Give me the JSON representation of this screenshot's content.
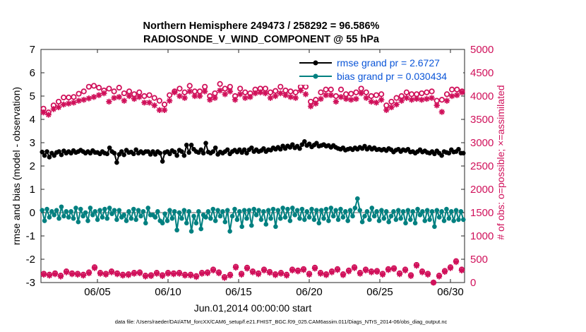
{
  "chart_data": {
    "type": "line",
    "title_line1": "Northern Hemisphere 249473 / 258292 = 96.586%",
    "title_line2": "RADIOSONDE_V_WIND_COMPONENT @ 55 hPa",
    "xlabel": "Jun.01,2014 00:00:00 start",
    "ylabel_left": "rmse and bias (model - observation)",
    "ylabel_right": "# of obs: o=possible; ×=assimilated",
    "footnote": "data file: /Users/raeder/DAI/ATM_forcXX/CAM6_setup/f.e21.FHIST_BGC.f09_025.CAM6assim.011/Diags_NTrS_2014-06/obs_diag_output.nc",
    "xlim": [
      1,
      31
    ],
    "ylim_left": [
      -3,
      7
    ],
    "ylim_right": [
      0,
      5000
    ],
    "x_ticks": [
      5,
      10,
      15,
      20,
      25,
      30
    ],
    "x_tick_labels": [
      "06/05",
      "06/10",
      "06/15",
      "06/20",
      "06/25",
      "06/30"
    ],
    "y_left_ticks": [
      "-3",
      "-2",
      "-1",
      "0",
      "1",
      "2",
      "3",
      "4",
      "5",
      "6",
      "7"
    ],
    "y_right_ticks": [
      "0",
      "500",
      "1000",
      "1500",
      "2000",
      "2500",
      "3000",
      "3500",
      "4000",
      "4500",
      "5000"
    ],
    "colors": {
      "rmse": "#000000",
      "bias": "#008080",
      "obs": "#d0105a",
      "zero_line": "#b0b0b0",
      "legend_text": "#0a55d8"
    },
    "series": [
      {
        "name": "rmse grand pr = 2.6727",
        "axis": "left",
        "marker": "dot",
        "values": [
          2.6,
          2.45,
          2.62,
          2.38,
          2.55,
          2.45,
          2.58,
          2.62,
          2.48,
          2.65,
          2.55,
          2.62,
          2.55,
          2.66,
          2.58,
          2.62,
          2.68,
          2.62,
          2.55,
          2.62,
          2.55,
          2.66,
          2.58,
          2.58,
          2.52,
          2.62,
          2.55,
          2.52,
          2.78,
          2.62,
          2.55,
          2.15,
          2.5,
          2.62,
          2.48,
          2.68,
          2.58,
          2.6,
          2.52,
          2.7,
          2.55,
          2.62,
          2.55,
          2.62,
          2.62,
          2.5,
          2.62,
          2.5,
          2.62,
          2.55,
          2.2,
          2.58,
          2.62,
          2.52,
          2.66,
          2.6,
          2.45,
          2.68,
          2.62,
          2.45,
          2.9,
          2.58,
          2.9,
          2.72,
          2.62,
          2.58,
          2.7,
          2.55,
          2.98,
          2.6,
          2.55,
          2.62,
          2.78,
          2.5,
          2.6,
          2.55,
          2.62,
          2.7,
          2.52,
          2.62,
          2.68,
          2.6,
          2.7,
          2.58,
          2.7,
          2.55,
          2.7,
          2.78,
          2.62,
          2.7,
          2.62,
          2.66,
          2.75,
          2.62,
          2.7,
          2.68,
          2.78,
          2.72,
          2.8,
          2.72,
          2.86,
          2.75,
          2.86,
          2.8,
          2.92,
          2.78,
          2.85,
          2.75,
          2.92,
          3.05,
          2.88,
          2.95,
          2.82,
          2.9,
          2.98,
          2.85,
          2.88,
          2.92,
          2.85,
          2.88,
          2.8,
          2.88,
          2.8,
          2.75,
          2.72,
          2.78,
          2.68,
          2.72,
          2.75,
          2.7,
          2.78,
          2.72,
          2.8,
          2.75,
          2.85,
          2.72,
          2.8,
          2.72,
          2.78,
          2.7,
          2.72,
          2.68,
          2.72,
          2.66,
          2.75,
          2.7,
          2.6,
          2.68,
          2.72,
          2.62,
          2.7,
          2.66,
          2.72,
          2.6,
          2.62,
          2.55,
          2.62,
          2.7,
          2.6,
          2.65,
          2.58,
          2.55,
          2.62,
          2.52,
          2.65,
          2.55,
          2.45,
          2.62,
          2.58,
          2.55,
          2.7,
          2.6,
          2.62,
          2.72,
          2.55,
          2.55
        ]
      },
      {
        "name": "bias grand pr = 0.030434",
        "axis": "left",
        "marker": "dot",
        "values": [
          0.1,
          -0.35,
          0.15,
          -0.2,
          0.05,
          -0.1,
          0.1,
          -0.25,
          0.25,
          -0.15,
          0.05,
          -0.2,
          0.05,
          -0.25,
          0.2,
          -0.4,
          0.15,
          -0.15,
          0.0,
          -0.35,
          0.2,
          -0.1,
          0.05,
          -0.3,
          0.1,
          -0.2,
          0.15,
          -0.25,
          0.2,
          -0.05,
          0.1,
          -0.3,
          0.1,
          -0.2,
          -0.1,
          -0.35,
          0.05,
          -0.25,
          0.15,
          -0.3,
          0.1,
          -0.15,
          0.05,
          -0.45,
          0.2,
          -0.1,
          -0.1,
          -0.2,
          0.05,
          -0.35,
          -0.45,
          -0.05,
          -0.35,
          0.1,
          -0.25,
          0.05,
          -0.75,
          0.0,
          -0.25,
          0.1,
          -0.45,
          0.05,
          -0.8,
          -0.15,
          -0.45,
          0.05,
          -0.7,
          -0.1,
          -0.2,
          0.05,
          -0.25,
          0.15,
          -0.35,
          0.1,
          -0.15,
          0.05,
          -0.4,
          0.1,
          -0.8,
          -0.15,
          0.15,
          -0.3,
          0.05,
          -0.6,
          0.1,
          -0.25,
          0.1,
          -0.55,
          0.15,
          -0.1,
          0.1,
          -0.3,
          0.05,
          -0.5,
          0.1,
          -0.25,
          0.15,
          -0.6,
          0.1,
          -0.25,
          0.2,
          -0.2,
          0.15,
          -0.35,
          0.2,
          -0.1,
          0.1,
          -0.25,
          0.15,
          -0.3,
          0.05,
          -0.2,
          0.15,
          -0.3,
          0.1,
          -0.45,
          0.1,
          -0.25,
          0.15,
          -0.35,
          0.2,
          -0.15,
          0.1,
          -0.3,
          0.15,
          -0.2,
          0.05,
          -0.35,
          0.1,
          -0.15,
          0.2,
          0.6,
          0.1,
          -0.4,
          -0.15,
          0.05,
          -0.3,
          0.2,
          -0.15,
          0.05,
          -0.35,
          0.1,
          -0.25,
          0.05,
          -0.4,
          -0.15,
          0.05,
          -0.3,
          0.1,
          -0.25,
          0.05,
          -0.45,
          0.1,
          -0.3,
          0.05,
          -0.45,
          0.15,
          -0.1,
          0.05,
          -0.35,
          0.1,
          -0.3,
          0.05,
          -0.6,
          0.1,
          -0.2,
          0.05,
          -0.35,
          0.15,
          -0.25,
          0.05,
          -0.35,
          0.1,
          -0.3,
          0.05,
          -0.3
        ]
      },
      {
        "name": "possible obs",
        "axis": "right",
        "marker": "circle",
        "values": [
          3730,
          3650,
          3800,
          3880,
          3970,
          3970,
          3980,
          4050,
          4100,
          4200,
          4220,
          4180,
          4120,
          4160,
          4100,
          4180,
          4060,
          4100,
          4040,
          4080,
          4000,
          4020,
          3960,
          3900,
          3820,
          4020,
          4100,
          4160,
          4080,
          4220,
          4100,
          4100,
          4200,
          4000,
          4060,
          4260,
          4160,
          4200,
          4000,
          4160,
          4080,
          4060,
          4140,
          4160,
          4160,
          4080,
          4110,
          4200,
          4120,
          4100,
          4080,
          4200,
          4200,
          3880,
          3920,
          4080,
          4140,
          4140,
          4000,
          4140,
          4040,
          4050,
          4080,
          4160,
          4080,
          4000,
          4020,
          4040,
          3800,
          3880,
          3960,
          4000,
          4080,
          4040,
          4040,
          4060,
          4080,
          4100,
          3900,
          3920,
          4040,
          4140,
          4140,
          4100
        ]
      },
      {
        "name": "assimilated obs",
        "axis": "right",
        "marker": "asterisk",
        "values": [
          3650,
          3600,
          3720,
          3760,
          3820,
          3840,
          3860,
          3900,
          3920,
          3950,
          3980,
          4020,
          4060,
          3880,
          3960,
          3980,
          3900,
          4000,
          3940,
          3980,
          3860,
          3860,
          3800,
          3700,
          3700,
          3900,
          4080,
          4000,
          3960,
          4100,
          4000,
          4000,
          4100,
          3920,
          3960,
          4120,
          4040,
          4100,
          3920,
          4040,
          3960,
          3980,
          4060,
          4080,
          4060,
          3960,
          4000,
          4060,
          4020,
          3980,
          3960,
          4120,
          4040,
          3780,
          3840,
          3940,
          4020,
          4020,
          3880,
          3980,
          3940,
          3920,
          3940,
          4060,
          3960,
          3880,
          3860,
          3920,
          3700,
          3760,
          3820,
          3900,
          3960,
          3920,
          3940,
          3920,
          3940,
          3960,
          3800,
          3660,
          3900,
          4000,
          4020,
          4080
        ]
      },
      {
        "name": "bottom possible obs",
        "axis": "right",
        "marker": "circle",
        "values": [
          190,
          170,
          200,
          150,
          240,
          200,
          190,
          170,
          220,
          330,
          210,
          190,
          240,
          200,
          170,
          180,
          210,
          220,
          150,
          160,
          210,
          160,
          210,
          200,
          210,
          170,
          170,
          140,
          210,
          220,
          280,
          220,
          120,
          170,
          340,
          190,
          320,
          240,
          200,
          280,
          230,
          180,
          210,
          170,
          280,
          260,
          290,
          190,
          320,
          210,
          180,
          240,
          290,
          180,
          260,
          330,
          210,
          280,
          240,
          250,
          190,
          290,
          310,
          200,
          280,
          160,
          380,
          240,
          190,
          0,
          150,
          250,
          330,
          460,
          280
        ]
      },
      {
        "name": "bottom assimilated obs",
        "axis": "right",
        "marker": "asterisk",
        "values": [
          170,
          150,
          180,
          130,
          220,
          180,
          170,
          150,
          200,
          310,
          190,
          170,
          220,
          180,
          150,
          160,
          190,
          200,
          130,
          140,
          190,
          140,
          190,
          180,
          190,
          150,
          150,
          120,
          190,
          200,
          260,
          200,
          100,
          150,
          320,
          170,
          300,
          220,
          180,
          260,
          210,
          160,
          190,
          150,
          260,
          240,
          270,
          170,
          300,
          190,
          160,
          220,
          270,
          160,
          240,
          310,
          190,
          260,
          220,
          230,
          170,
          270,
          290,
          180,
          260,
          140,
          360,
          220,
          170,
          0,
          130,
          230,
          310,
          440,
          260
        ]
      }
    ]
  }
}
